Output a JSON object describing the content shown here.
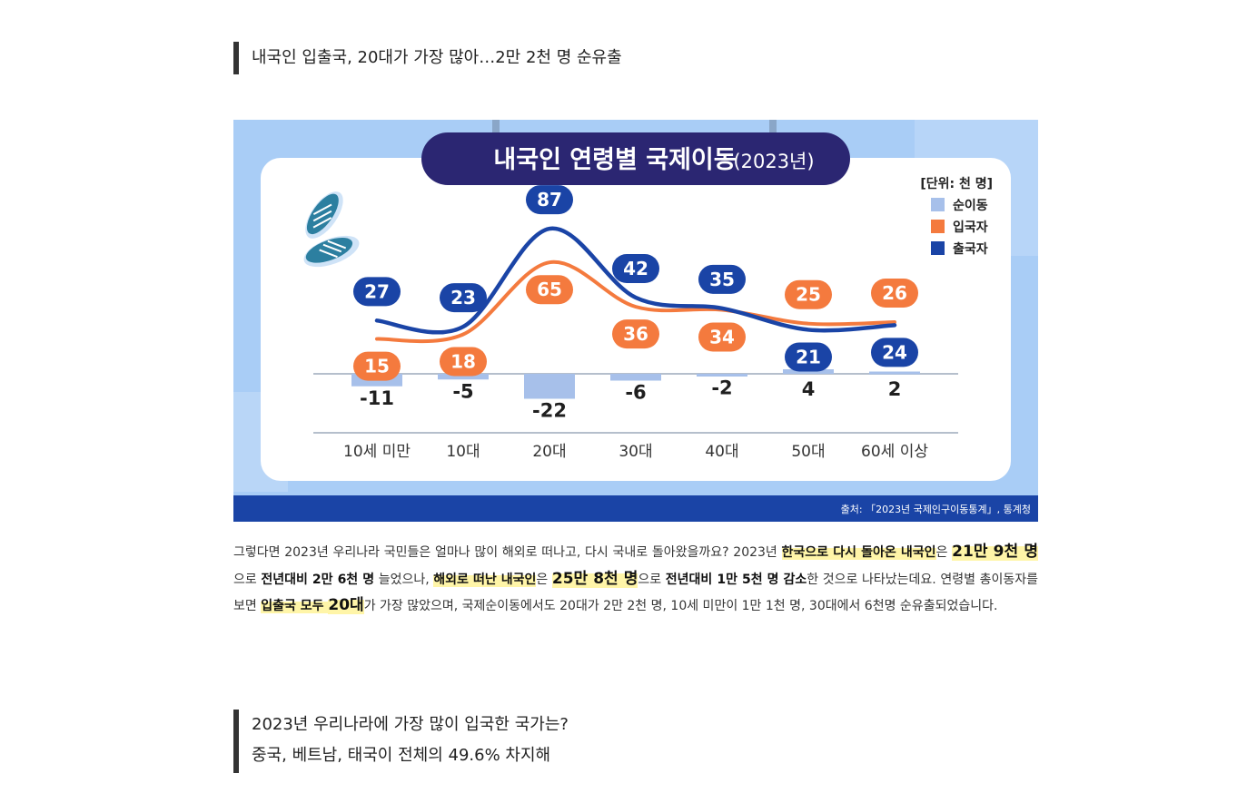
{
  "heading1": {
    "text": "내국인 입출국, 20대가 가장 많아…2만 2천 명 순유출"
  },
  "infographic": {
    "title": "내국인 연령별 국제이동",
    "title_year": "(2023년)",
    "unit": "[단위: 천 명]",
    "source": "출처: 「2023년 국제인구이동통계」, 통계청",
    "colors": {
      "background": "#a9cdf6",
      "panel": "#ffffff",
      "title_pill": "#2b2672",
      "net": "#a7c0ea",
      "inbound": "#f47a3e",
      "outbound": "#1a44a6",
      "footer": "#1a44a6"
    }
  },
  "chart_data": {
    "type": "line",
    "title": "내국인 연령별 국제이동 (2023년)",
    "unit": "[단위: 천 명]",
    "categories": [
      "10세 미만",
      "10대",
      "20대",
      "30대",
      "40대",
      "50대",
      "60세 이상"
    ],
    "series": [
      {
        "name": "순이동",
        "type": "bar",
        "color": "#a7c0ea",
        "values": [
          -11,
          -5,
          -22,
          -6,
          -2,
          4,
          2
        ]
      },
      {
        "name": "입국자",
        "type": "line",
        "color": "#f47a3e",
        "values": [
          15,
          18,
          65,
          36,
          34,
          25,
          26
        ]
      },
      {
        "name": "출국자",
        "type": "line",
        "color": "#1a44a6",
        "values": [
          27,
          23,
          87,
          42,
          35,
          21,
          24
        ]
      }
    ],
    "legend_position": "top-right",
    "grid": false
  },
  "paragraph": {
    "p1": "그렇다면 2023년 우리나라 국민들은 얼마나 많이 해외로 떠나고, 다시 국내로 돌아왔을까요? 2023년 ",
    "h1": "한국으로 다시 돌아온 내국인",
    "p2": "은 ",
    "h2": "21만 9천 명",
    "p3": "으로 ",
    "b1": "전년대비 2만 6천 명",
    "p4": " 늘었으나, ",
    "h3": "해외로 떠난 내국인",
    "p5": "은 ",
    "h4": "25만 8천 명",
    "p6": "으로 ",
    "b2": "전년대비 1만 5천 명 감소",
    "p7": "한 것으로 나타났는데요. 연령별 총이동자를 보면 ",
    "h5": "입출국 모두 ",
    "h6": "20대",
    "p8": "가 가장 많았으며, 국제순이동에서도 20대가 2만 2천 명, 10세 미만이 1만 1천 명, 30대에서 6천명 순유출되었습니다."
  },
  "heading2": {
    "line1": "2023년 우리나라에 가장 많이 입국한 국가는?",
    "line2": "중국, 베트남, 태국이 전체의 49.6% 차지해"
  }
}
